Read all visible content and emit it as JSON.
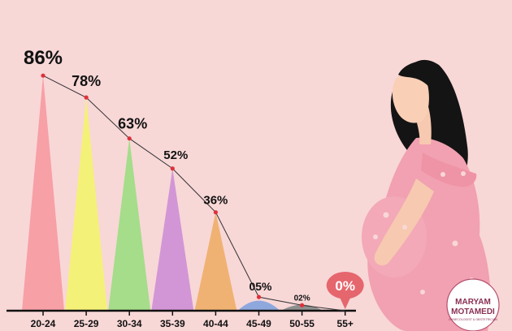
{
  "chart_data": {
    "type": "area",
    "categories": [
      "20-24",
      "25-29",
      "30-34",
      "35-39",
      "40-44",
      "45-49",
      "50-55",
      "55+"
    ],
    "values": [
      86,
      78,
      63,
      52,
      36,
      5,
      2,
      0
    ],
    "data_labels": [
      "86%",
      "78%",
      "63%",
      "52%",
      "36%",
      "05%",
      "02%",
      "0%"
    ],
    "ylim": [
      0,
      100
    ],
    "title": "",
    "xlabel": "",
    "ylabel": "",
    "grid": false,
    "legend": "none",
    "colors": [
      "#f7a0a6",
      "#f4f178",
      "#a5dd8a",
      "#d296d6",
      "#f0b273",
      "#8ea8dd",
      "#8f8f8f",
      "#e5666d"
    ],
    "line_color": "#333333",
    "point_color": "#e0303a"
  },
  "illustration": {
    "name": "pregnant-woman-illustration"
  },
  "logo": {
    "name": "maryam-motamedi-logo",
    "line1": "MARYAM",
    "line2": "MOTAMEDI",
    "tagline": "GYNECOLOGIST & OBSTETRICIAN"
  }
}
